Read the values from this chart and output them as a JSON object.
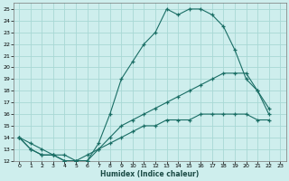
{
  "xlabel": "Humidex (Indice chaleur)",
  "bg_color": "#ceeeed",
  "grid_color": "#a8d8d5",
  "line_color": "#1a6e65",
  "xlim": [
    -0.5,
    23.5
  ],
  "ylim": [
    12,
    25.5
  ],
  "xtick_labels": [
    "0",
    "1",
    "2",
    "3",
    "4",
    "5",
    "6",
    "7",
    "8",
    "9",
    "10",
    "11",
    "12",
    "13",
    "14",
    "15",
    "16",
    "17",
    "18",
    "19",
    "20",
    "21",
    "22",
    "23"
  ],
  "xtick_vals": [
    0,
    1,
    2,
    3,
    4,
    5,
    6,
    7,
    8,
    9,
    10,
    11,
    12,
    13,
    14,
    15,
    16,
    17,
    18,
    19,
    20,
    21,
    22,
    23
  ],
  "ytick_vals": [
    12,
    13,
    14,
    15,
    16,
    17,
    18,
    19,
    20,
    21,
    22,
    23,
    24,
    25
  ],
  "line1_x": [
    0,
    1,
    2,
    3,
    4,
    5,
    6,
    7,
    8,
    9,
    10,
    11,
    12,
    13,
    14,
    15,
    16,
    17,
    18,
    19,
    20,
    21,
    22
  ],
  "line1_y": [
    14,
    13,
    12.5,
    12.5,
    12,
    12,
    12,
    13.5,
    16,
    19,
    20.5,
    22,
    23,
    25,
    24.5,
    25,
    25,
    24.5,
    23.5,
    21.5,
    19,
    18,
    16.5
  ],
  "line2_x": [
    0,
    1,
    2,
    3,
    4,
    5,
    6,
    7,
    8,
    9,
    10,
    11,
    12,
    13,
    14,
    15,
    16,
    17,
    18,
    19,
    20,
    21,
    22
  ],
  "line2_y": [
    14,
    13,
    12.5,
    12.5,
    12,
    12,
    12,
    13,
    14,
    15,
    15.5,
    16,
    16.5,
    17,
    17.5,
    18,
    18.5,
    19,
    19.5,
    19.5,
    19.5,
    18,
    16
  ],
  "line3_x": [
    0,
    1,
    2,
    3,
    4,
    5,
    6,
    7,
    8,
    9,
    10,
    11,
    12,
    13,
    14,
    15,
    16,
    17,
    18,
    19,
    20,
    21,
    22
  ],
  "line3_y": [
    14,
    13.5,
    13,
    12.5,
    12.5,
    12,
    12.5,
    13,
    13.5,
    14,
    14.5,
    15,
    15,
    15.5,
    15.5,
    15.5,
    16,
    16,
    16,
    16,
    16,
    15.5,
    15.5
  ]
}
